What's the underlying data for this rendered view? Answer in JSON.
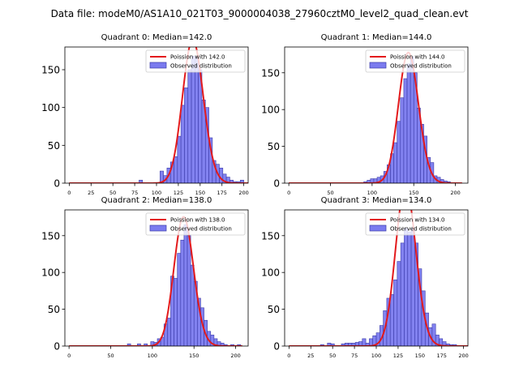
{
  "suptitle": "Data file: modeM0/AS1A10_021T03_9000004038_27960cztM0_level2_quad_clean.evt",
  "colors": {
    "hist_fill": "#7b7bef",
    "hist_edge": "#3a3aa8",
    "curve": "#e31a1c"
  },
  "chart_data": [
    {
      "type": "bar",
      "title": "Quadrant 0: Median=142.0",
      "xlim": [
        -5,
        205
      ],
      "ylim": [
        0,
        180
      ],
      "xticks": [
        0,
        25,
        50,
        75,
        100,
        125,
        150,
        175,
        200
      ],
      "yticks": [
        0,
        50,
        100,
        150
      ],
      "legend": [
        "Poission with 142.0",
        "Observed distribution"
      ],
      "legend_position": "top-right",
      "mu": 142.0,
      "bin_width": 4,
      "bins": [
        [
          80,
          4
        ],
        [
          104,
          16
        ],
        [
          108,
          10
        ],
        [
          112,
          20
        ],
        [
          116,
          28
        ],
        [
          120,
          35
        ],
        [
          124,
          62
        ],
        [
          128,
          103
        ],
        [
          132,
          126
        ],
        [
          136,
          150
        ],
        [
          140,
          168
        ],
        [
          144,
          167
        ],
        [
          148,
          150
        ],
        [
          152,
          110
        ],
        [
          156,
          100
        ],
        [
          160,
          60
        ],
        [
          164,
          30
        ],
        [
          168,
          25
        ],
        [
          172,
          20
        ],
        [
          176,
          12
        ],
        [
          180,
          8
        ],
        [
          184,
          4
        ],
        [
          188,
          2
        ],
        [
          192,
          2
        ],
        [
          196,
          4
        ]
      ]
    },
    {
      "type": "bar",
      "title": "Quadrant 1: Median=144.0",
      "xlim": [
        -5,
        215
      ],
      "ylim": [
        0,
        185
      ],
      "xticks": [
        0,
        50,
        100,
        150,
        200
      ],
      "yticks": [
        0,
        50,
        100,
        150
      ],
      "legend": [
        "Poission with 144.0",
        "Observed distribution"
      ],
      "legend_position": "top-right",
      "mu": 144.0,
      "bin_width": 4,
      "bins": [
        [
          90,
          2
        ],
        [
          94,
          4
        ],
        [
          98,
          6
        ],
        [
          102,
          6
        ],
        [
          106,
          8
        ],
        [
          110,
          10
        ],
        [
          114,
          16
        ],
        [
          118,
          25
        ],
        [
          122,
          40
        ],
        [
          126,
          55
        ],
        [
          130,
          84
        ],
        [
          134,
          116
        ],
        [
          138,
          142
        ],
        [
          142,
          162
        ],
        [
          146,
          172
        ],
        [
          150,
          150
        ],
        [
          154,
          102
        ],
        [
          158,
          80
        ],
        [
          162,
          64
        ],
        [
          166,
          35
        ],
        [
          170,
          28
        ],
        [
          174,
          10
        ],
        [
          178,
          8
        ],
        [
          182,
          5
        ],
        [
          186,
          3
        ],
        [
          190,
          2
        ]
      ]
    },
    {
      "type": "bar",
      "title": "Quadrant 2: Median=138.0",
      "xlim": [
        -5,
        215
      ],
      "ylim": [
        0,
        185
      ],
      "xticks": [
        0,
        50,
        100,
        150,
        200
      ],
      "yticks": [
        0,
        50,
        100,
        150
      ],
      "legend": [
        "Poission with 138.0",
        "Observed distribution"
      ],
      "legend_position": "top-right",
      "mu": 138.0,
      "bin_width": 4,
      "bins": [
        [
          70,
          3
        ],
        [
          82,
          3
        ],
        [
          90,
          3
        ],
        [
          98,
          6
        ],
        [
          102,
          5
        ],
        [
          106,
          10
        ],
        [
          110,
          12
        ],
        [
          114,
          30
        ],
        [
          118,
          38
        ],
        [
          122,
          95
        ],
        [
          126,
          92
        ],
        [
          130,
          126
        ],
        [
          134,
          144
        ],
        [
          138,
          165
        ],
        [
          142,
          150
        ],
        [
          146,
          110
        ],
        [
          150,
          88
        ],
        [
          154,
          65
        ],
        [
          158,
          52
        ],
        [
          162,
          35
        ],
        [
          166,
          20
        ],
        [
          170,
          15
        ],
        [
          174,
          10
        ],
        [
          178,
          6
        ],
        [
          182,
          4
        ],
        [
          186,
          2
        ],
        [
          194,
          2
        ],
        [
          202,
          2
        ]
      ]
    },
    {
      "type": "bar",
      "title": "Quadrant 3: Median=134.0",
      "xlim": [
        -5,
        205
      ],
      "ylim": [
        0,
        185
      ],
      "xticks": [
        0,
        25,
        50,
        75,
        100,
        125,
        150,
        175,
        200
      ],
      "yticks": [
        0,
        50,
        100,
        150
      ],
      "legend": [
        "Poission with 134.0",
        "Observed distribution"
      ],
      "legend_position": "top-right",
      "mu": 134.0,
      "bin_width": 4,
      "bins": [
        [
          36,
          2
        ],
        [
          44,
          4
        ],
        [
          48,
          3
        ],
        [
          60,
          3
        ],
        [
          64,
          4
        ],
        [
          68,
          4
        ],
        [
          72,
          4
        ],
        [
          76,
          5
        ],
        [
          80,
          6
        ],
        [
          84,
          10
        ],
        [
          88,
          4
        ],
        [
          92,
          10
        ],
        [
          96,
          14
        ],
        [
          100,
          18
        ],
        [
          104,
          28
        ],
        [
          108,
          48
        ],
        [
          112,
          65
        ],
        [
          116,
          70
        ],
        [
          120,
          90
        ],
        [
          124,
          115
        ],
        [
          128,
          140
        ],
        [
          132,
          160
        ],
        [
          136,
          155
        ],
        [
          140,
          160
        ],
        [
          144,
          140
        ],
        [
          148,
          105
        ],
        [
          152,
          75
        ],
        [
          156,
          45
        ],
        [
          160,
          25
        ],
        [
          164,
          30
        ],
        [
          168,
          15
        ],
        [
          172,
          10
        ],
        [
          176,
          6
        ],
        [
          180,
          3
        ],
        [
          184,
          2
        ],
        [
          188,
          2
        ]
      ]
    }
  ]
}
